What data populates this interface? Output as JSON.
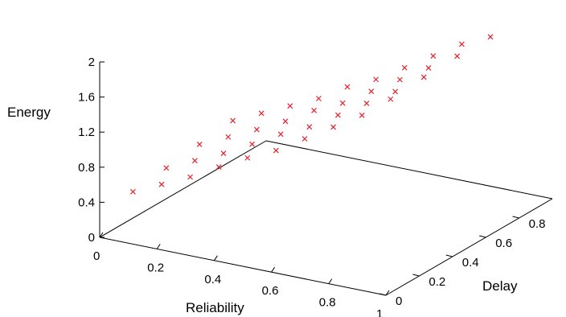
{
  "chart_data": {
    "type": "scatter",
    "title": "",
    "xlabel": "Reliability",
    "ylabel": "Delay",
    "zlabel": "Energy",
    "xlim": [
      0,
      1
    ],
    "ylim": [
      0,
      1
    ],
    "zlim": [
      0,
      2
    ],
    "x_ticks": [
      "0",
      "0.2",
      "0.4",
      "0.6",
      "0.8",
      "1"
    ],
    "y_ticks": [
      "0",
      "0.2",
      "0.4",
      "0.6",
      "0.8"
    ],
    "z_ticks": [
      "0",
      "0.4",
      "0.8",
      "1.2",
      "1.6",
      "2"
    ],
    "grid": false,
    "legend": "none",
    "marker": "x",
    "marker_color": "#e8202a",
    "series": [
      {
        "x": [
          0.0,
          0.1,
          0.2,
          0.3,
          0.4,
          0.5,
          0.6,
          0.7,
          0.8,
          0.9
        ],
        "y": [
          0.2,
          0.2,
          0.2,
          0.2,
          0.2,
          0.2,
          0.2,
          0.2,
          0.2,
          0.2
        ],
        "z": [
          0.3,
          0.45,
          0.6,
          0.78,
          0.95,
          1.1,
          1.3,
          1.5,
          1.7,
          1.95
        ]
      },
      {
        "x": [
          0.0,
          0.1,
          0.2,
          0.3,
          0.4,
          0.5,
          0.6,
          0.7,
          0.8,
          0.9
        ],
        "y": [
          0.4,
          0.4,
          0.4,
          0.4,
          0.4,
          0.4,
          0.4,
          0.4,
          0.4,
          0.4
        ],
        "z": [
          0.35,
          0.5,
          0.65,
          0.82,
          1.0,
          1.15,
          1.35,
          1.55,
          1.75,
          1.98
        ]
      },
      {
        "x": [
          0.0,
          0.1,
          0.2,
          0.3,
          0.4,
          0.5,
          0.6,
          0.7,
          0.8,
          0.9
        ],
        "y": [
          0.6,
          0.6,
          0.6,
          0.6,
          0.6,
          0.6,
          0.6,
          0.6,
          0.6,
          0.6
        ],
        "z": [
          0.4,
          0.55,
          0.7,
          0.86,
          1.05,
          1.2,
          1.4,
          1.6,
          1.8,
          2.0
        ]
      },
      {
        "x": [
          0.0,
          0.1,
          0.2,
          0.3,
          0.4,
          0.5,
          0.6,
          0.7,
          0.8,
          0.9
        ],
        "y": [
          0.8,
          0.8,
          0.8,
          0.8,
          0.8,
          0.8,
          0.8,
          0.8,
          0.8,
          0.8
        ],
        "z": [
          0.45,
          0.6,
          0.75,
          0.9,
          1.1,
          1.25,
          1.45,
          1.65,
          1.85,
          2.0
        ]
      }
    ]
  }
}
